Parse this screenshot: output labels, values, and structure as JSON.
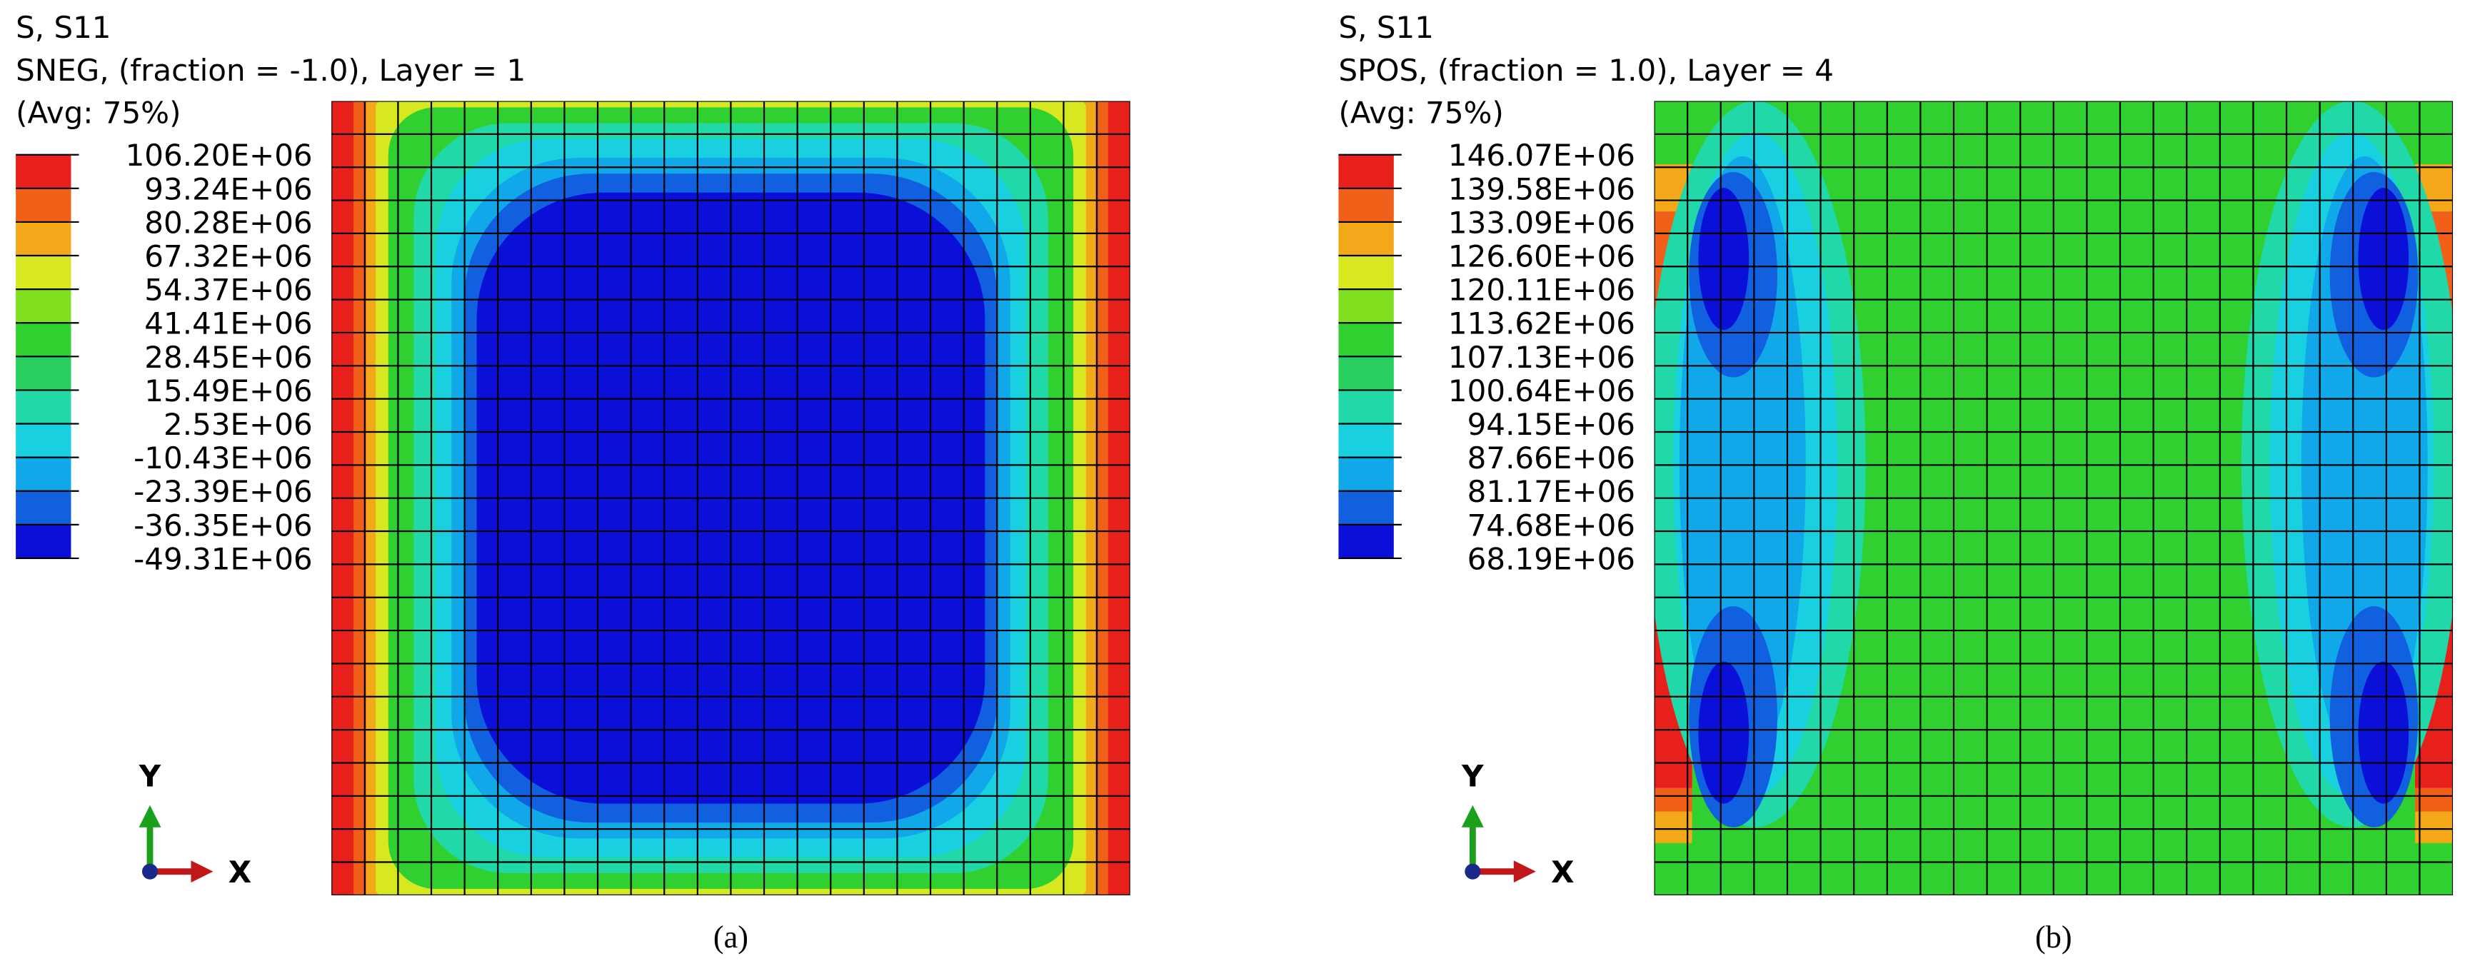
{
  "panels": [
    {
      "header": [
        "S, S11",
        "SNEG, (fraction = -1.0), Layer = 1",
        "(Avg: 75%)"
      ],
      "legend": [
        "106.20E+06",
        "93.24E+06",
        "80.28E+06",
        "67.32E+06",
        "54.37E+06",
        "41.41E+06",
        "28.45E+06",
        "15.49E+06",
        "2.53E+06",
        "-10.43E+06",
        "-23.39E+06",
        "-36.35E+06",
        "-49.31E+06"
      ],
      "axes": {
        "y": "Y",
        "x": "X"
      },
      "caption": "(a)"
    },
    {
      "header": [
        "S, S11",
        "SPOS, (fraction = 1.0), Layer = 4",
        "(Avg: 75%)"
      ],
      "legend": [
        "146.07E+06",
        "139.58E+06",
        "133.09E+06",
        "126.60E+06",
        "120.11E+06",
        "113.62E+06",
        "107.13E+06",
        "100.64E+06",
        "94.15E+06",
        "87.66E+06",
        "81.17E+06",
        "74.68E+06",
        "68.19E+06"
      ],
      "axes": {
        "y": "Y",
        "x": "X"
      },
      "caption": "(b)"
    }
  ]
}
